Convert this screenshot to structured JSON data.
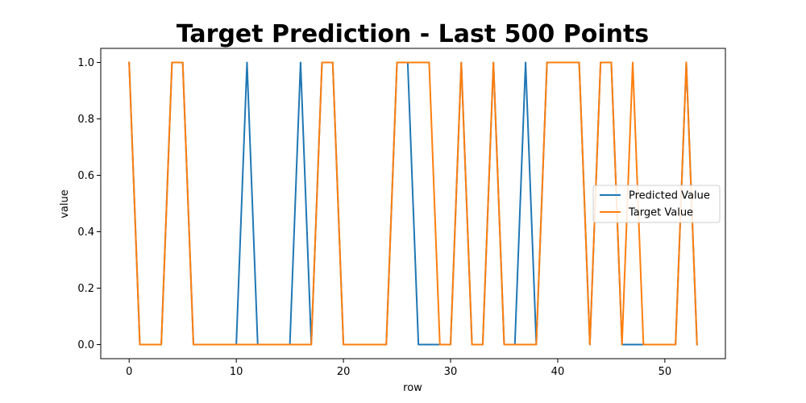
{
  "chart_data": {
    "type": "line",
    "title": "Target Prediction - Last 500 Points",
    "xlabel": "row",
    "ylabel": "value",
    "xlim": [
      -2.65,
      55.65
    ],
    "ylim": [
      -0.05,
      1.05
    ],
    "xticks": [
      0,
      10,
      20,
      30,
      40,
      50
    ],
    "xtick_labels": [
      "0",
      "10",
      "20",
      "30",
      "40",
      "50"
    ],
    "yticks": [
      0.0,
      0.2,
      0.4,
      0.6,
      0.8,
      1.0
    ],
    "ytick_labels": [
      "0.0",
      "0.2",
      "0.4",
      "0.6",
      "0.8",
      "1.0"
    ],
    "grid": false,
    "legend_position": "center-right",
    "x": [
      0,
      1,
      2,
      3,
      4,
      5,
      6,
      7,
      8,
      9,
      10,
      11,
      12,
      13,
      14,
      15,
      16,
      17,
      18,
      19,
      20,
      21,
      22,
      23,
      24,
      25,
      26,
      27,
      28,
      29,
      30,
      31,
      32,
      33,
      34,
      35,
      36,
      37,
      38,
      39,
      40,
      41,
      42,
      43,
      44,
      45,
      46,
      47,
      48,
      49,
      50,
      51,
      52,
      53
    ],
    "series": [
      {
        "name": "Predicted Value",
        "color": "#1f77b4",
        "values": [
          1,
          0,
          0,
          0,
          1,
          1,
          0,
          0,
          0,
          0,
          0,
          1,
          0,
          0,
          0,
          0,
          1,
          0,
          1,
          1,
          0,
          0,
          0,
          0,
          0,
          1,
          1,
          0,
          0,
          0,
          0,
          1,
          0,
          0,
          1,
          0,
          0,
          1,
          0,
          1,
          1,
          1,
          1,
          0,
          1,
          1,
          0,
          0,
          0,
          0,
          0,
          0,
          1,
          0
        ]
      },
      {
        "name": "Target Value",
        "color": "#ff7f0e",
        "values": [
          1,
          0,
          0,
          0,
          1,
          1,
          0,
          0,
          0,
          0,
          0,
          0,
          0,
          0,
          0,
          0,
          0,
          0,
          1,
          1,
          0,
          0,
          0,
          0,
          0,
          1,
          1,
          1,
          1,
          0,
          0,
          1,
          0,
          0,
          1,
          0,
          0,
          0,
          0,
          1,
          1,
          1,
          1,
          0,
          1,
          1,
          0,
          1,
          0,
          0,
          0,
          0,
          1,
          0
        ]
      }
    ]
  }
}
